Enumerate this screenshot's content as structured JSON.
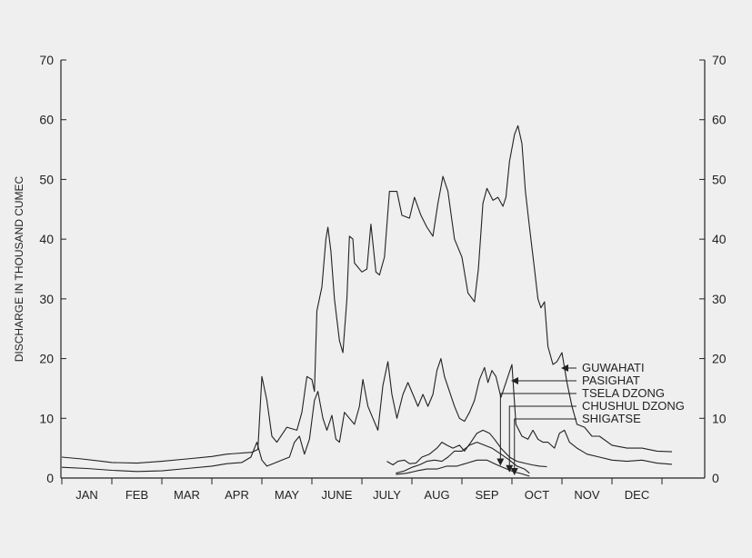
{
  "chart_data": {
    "type": "line",
    "title": "",
    "ylabel": "DISCHARGE IN THOUSAND CUMEC",
    "ylim": [
      0,
      70
    ],
    "yticks": [
      0,
      10,
      20,
      30,
      40,
      50,
      60,
      70
    ],
    "secondary_y": true,
    "grid": false,
    "months": [
      "JAN",
      "FEB",
      "MAR",
      "APR",
      "MAY",
      "JUNE",
      "JULY",
      "AUG",
      "SEP",
      "OCT",
      "NOV",
      "DEC"
    ],
    "colors": {
      "background": "#efefef",
      "line": "#222222"
    },
    "series": [
      {
        "name": "GUWAHATI",
        "label_month": 10.0,
        "points": [
          [
            0.0,
            3.5
          ],
          [
            0.4,
            3.2
          ],
          [
            0.8,
            2.8
          ],
          [
            1.0,
            2.6
          ],
          [
            1.5,
            2.5
          ],
          [
            2.0,
            2.8
          ],
          [
            2.5,
            3.2
          ],
          [
            3.0,
            3.6
          ],
          [
            3.3,
            4.0
          ],
          [
            3.8,
            4.3
          ],
          [
            3.92,
            4.8
          ],
          [
            4.0,
            17.0
          ],
          [
            4.1,
            13.0
          ],
          [
            4.2,
            7.0
          ],
          [
            4.3,
            6.0
          ],
          [
            4.5,
            8.5
          ],
          [
            4.7,
            8.0
          ],
          [
            4.8,
            11.0
          ],
          [
            4.9,
            17.0
          ],
          [
            5.0,
            16.5
          ],
          [
            5.05,
            14.5
          ],
          [
            5.1,
            28.0
          ],
          [
            5.2,
            32.0
          ],
          [
            5.28,
            40.0
          ],
          [
            5.32,
            42.0
          ],
          [
            5.38,
            38.0
          ],
          [
            5.45,
            30.0
          ],
          [
            5.55,
            23.0
          ],
          [
            5.62,
            21.0
          ],
          [
            5.7,
            30.0
          ],
          [
            5.75,
            40.5
          ],
          [
            5.82,
            40.0
          ],
          [
            5.85,
            36.0
          ],
          [
            6.0,
            34.5
          ],
          [
            6.1,
            35.0
          ],
          [
            6.18,
            42.5
          ],
          [
            6.28,
            34.5
          ],
          [
            6.35,
            34.0
          ],
          [
            6.45,
            37.0
          ],
          [
            6.55,
            48.0
          ],
          [
            6.7,
            48.0
          ],
          [
            6.8,
            44.0
          ],
          [
            6.95,
            43.5
          ],
          [
            7.05,
            47.0
          ],
          [
            7.18,
            44.0
          ],
          [
            7.3,
            42.0
          ],
          [
            7.42,
            40.5
          ],
          [
            7.52,
            46.0
          ],
          [
            7.62,
            50.5
          ],
          [
            7.72,
            48.0
          ],
          [
            7.85,
            40.0
          ],
          [
            8.0,
            37.0
          ],
          [
            8.12,
            31.0
          ],
          [
            8.25,
            29.5
          ],
          [
            8.33,
            35.0
          ],
          [
            8.42,
            46.0
          ],
          [
            8.5,
            48.5
          ],
          [
            8.62,
            46.5
          ],
          [
            8.72,
            47.0
          ],
          [
            8.82,
            45.5
          ],
          [
            8.88,
            47.0
          ],
          [
            8.95,
            53.0
          ],
          [
            9.05,
            57.5
          ],
          [
            9.12,
            59.0
          ],
          [
            9.2,
            56.0
          ],
          [
            9.27,
            48.0
          ],
          [
            9.35,
            42.0
          ],
          [
            9.45,
            35.0
          ],
          [
            9.52,
            30.0
          ],
          [
            9.58,
            28.5
          ],
          [
            9.65,
            29.5
          ],
          [
            9.72,
            22.0
          ],
          [
            9.82,
            19.0
          ],
          [
            9.9,
            19.5
          ],
          [
            10.0,
            21.0
          ],
          [
            10.1,
            16.0
          ],
          [
            10.2,
            12.0
          ],
          [
            10.3,
            9.0
          ],
          [
            10.45,
            8.5
          ],
          [
            10.6,
            7.0
          ],
          [
            10.75,
            7.0
          ],
          [
            11.0,
            5.5
          ],
          [
            11.3,
            5.0
          ],
          [
            11.6,
            5.0
          ],
          [
            11.9,
            4.5
          ],
          [
            12.2,
            4.4
          ]
        ]
      },
      {
        "name": "PASIGHAT",
        "label_month": 9.0,
        "points": [
          [
            0.0,
            1.8
          ],
          [
            0.5,
            1.6
          ],
          [
            1.0,
            1.3
          ],
          [
            1.5,
            1.1
          ],
          [
            2.0,
            1.2
          ],
          [
            2.5,
            1.6
          ],
          [
            3.0,
            2.0
          ],
          [
            3.3,
            2.4
          ],
          [
            3.6,
            2.6
          ],
          [
            3.78,
            3.5
          ],
          [
            3.9,
            6.0
          ],
          [
            4.0,
            3.0
          ],
          [
            4.1,
            2.0
          ],
          [
            4.25,
            2.5
          ],
          [
            4.4,
            3.0
          ],
          [
            4.55,
            3.5
          ],
          [
            4.65,
            6.0
          ],
          [
            4.75,
            7.0
          ],
          [
            4.85,
            4.0
          ],
          [
            4.95,
            6.5
          ],
          [
            5.05,
            13.0
          ],
          [
            5.12,
            14.5
          ],
          [
            5.22,
            10.0
          ],
          [
            5.3,
            8.0
          ],
          [
            5.4,
            10.5
          ],
          [
            5.48,
            6.5
          ],
          [
            5.55,
            6.0
          ],
          [
            5.65,
            11.0
          ],
          [
            5.75,
            10.0
          ],
          [
            5.85,
            9.0
          ],
          [
            5.95,
            12.0
          ],
          [
            6.02,
            16.5
          ],
          [
            6.12,
            12.0
          ],
          [
            6.22,
            10.0
          ],
          [
            6.32,
            8.0
          ],
          [
            6.42,
            15.5
          ],
          [
            6.52,
            19.5
          ],
          [
            6.6,
            14.0
          ],
          [
            6.7,
            10.0
          ],
          [
            6.82,
            14.0
          ],
          [
            6.92,
            16.0
          ],
          [
            7.02,
            14.0
          ],
          [
            7.12,
            12.0
          ],
          [
            7.22,
            14.0
          ],
          [
            7.32,
            12.0
          ],
          [
            7.42,
            14.0
          ],
          [
            7.5,
            18.0
          ],
          [
            7.58,
            20.0
          ],
          [
            7.65,
            17.0
          ],
          [
            7.75,
            14.5
          ],
          [
            7.85,
            12.0
          ],
          [
            7.95,
            10.0
          ],
          [
            8.05,
            9.5
          ],
          [
            8.15,
            11.0
          ],
          [
            8.25,
            13.0
          ],
          [
            8.35,
            16.5
          ],
          [
            8.45,
            18.5
          ],
          [
            8.52,
            16.0
          ],
          [
            8.6,
            18.0
          ],
          [
            8.68,
            17.0
          ],
          [
            8.78,
            13.5
          ],
          [
            8.92,
            17.0
          ],
          [
            9.0,
            19.0
          ],
          [
            9.08,
            9.0
          ],
          [
            9.2,
            7.0
          ],
          [
            9.32,
            6.5
          ],
          [
            9.42,
            8.0
          ],
          [
            9.52,
            6.5
          ],
          [
            9.62,
            6.0
          ],
          [
            9.72,
            6.0
          ],
          [
            9.85,
            5.0
          ],
          [
            9.95,
            7.5
          ],
          [
            10.05,
            8.0
          ],
          [
            10.15,
            6.0
          ],
          [
            10.3,
            5.0
          ],
          [
            10.5,
            4.0
          ],
          [
            10.75,
            3.5
          ],
          [
            11.0,
            3.0
          ],
          [
            11.3,
            2.8
          ],
          [
            11.6,
            3.0
          ],
          [
            11.9,
            2.5
          ],
          [
            12.2,
            2.3
          ]
        ]
      },
      {
        "name": "TSELA DZONG",
        "label_month": 8.77,
        "points": [
          [
            6.5,
            2.8
          ],
          [
            6.62,
            2.2
          ],
          [
            6.72,
            2.8
          ],
          [
            6.85,
            3.0
          ],
          [
            6.95,
            2.4
          ],
          [
            7.08,
            2.5
          ],
          [
            7.2,
            3.5
          ],
          [
            7.35,
            4.0
          ],
          [
            7.5,
            5.0
          ],
          [
            7.6,
            6.0
          ],
          [
            7.7,
            5.5
          ],
          [
            7.82,
            5.0
          ],
          [
            7.95,
            5.5
          ],
          [
            8.05,
            4.5
          ],
          [
            8.18,
            6.0
          ],
          [
            8.3,
            7.5
          ],
          [
            8.42,
            8.0
          ],
          [
            8.55,
            7.5
          ],
          [
            8.65,
            6.5
          ],
          [
            8.78,
            5.0
          ],
          [
            8.95,
            3.5
          ],
          [
            9.1,
            2.8
          ],
          [
            9.25,
            2.5
          ],
          [
            9.4,
            2.2
          ],
          [
            9.55,
            2.0
          ],
          [
            9.7,
            1.9
          ]
        ]
      },
      {
        "name": "CHUSHUL DZONG",
        "label_month": 8.95,
        "points": [
          [
            6.68,
            0.8
          ],
          [
            6.85,
            1.2
          ],
          [
            7.0,
            1.8
          ],
          [
            7.15,
            2.2
          ],
          [
            7.3,
            2.8
          ],
          [
            7.45,
            3.0
          ],
          [
            7.6,
            2.8
          ],
          [
            7.72,
            3.5
          ],
          [
            7.85,
            4.5
          ],
          [
            8.0,
            4.5
          ],
          [
            8.15,
            5.5
          ],
          [
            8.3,
            6.0
          ],
          [
            8.45,
            5.5
          ],
          [
            8.6,
            5.0
          ],
          [
            8.78,
            4.0
          ],
          [
            8.95,
            3.0
          ],
          [
            9.1,
            2.0
          ],
          [
            9.25,
            1.5
          ],
          [
            9.35,
            0.8
          ]
        ]
      },
      {
        "name": "SHIGATSE",
        "label_month": 9.05,
        "points": [
          [
            6.68,
            0.6
          ],
          [
            6.9,
            0.8
          ],
          [
            7.1,
            1.2
          ],
          [
            7.3,
            1.5
          ],
          [
            7.5,
            1.5
          ],
          [
            7.7,
            2.0
          ],
          [
            7.9,
            2.0
          ],
          [
            8.1,
            2.5
          ],
          [
            8.3,
            3.0
          ],
          [
            8.5,
            3.0
          ],
          [
            8.7,
            2.2
          ],
          [
            8.9,
            1.5
          ],
          [
            9.05,
            1.0
          ],
          [
            9.2,
            0.7
          ],
          [
            9.35,
            0.3
          ]
        ]
      }
    ]
  }
}
